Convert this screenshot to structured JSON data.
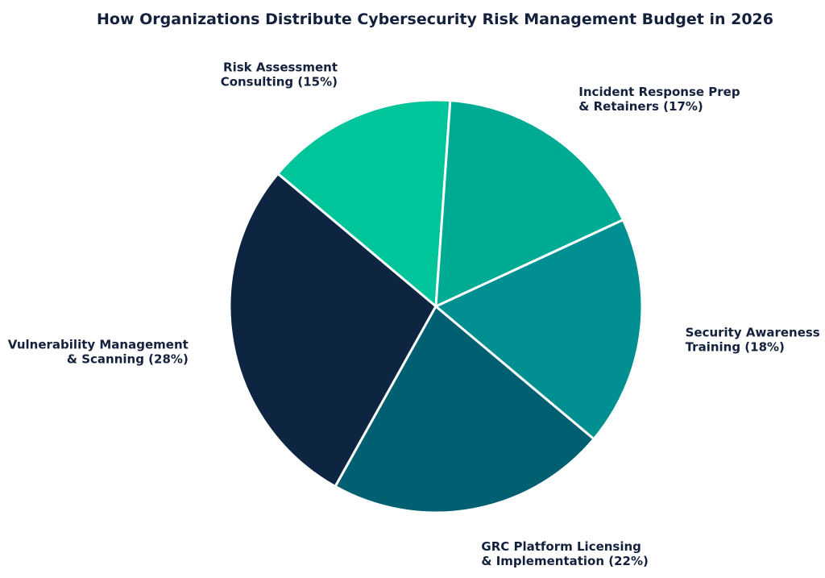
{
  "chart_data": {
    "type": "pie",
    "title": "How Organizations Distribute Cybersecurity Risk Management Budget in 2026",
    "start_angle_deg": 86,
    "direction": "counterclockwise",
    "slices": [
      {
        "label_lines": [
          "Risk Assessment",
          "Consulting (15%)"
        ],
        "value": 15,
        "color": "#00c49a"
      },
      {
        "label_lines": [
          "Vulnerability Management",
          "& Scanning (28%)"
        ],
        "value": 28,
        "color": "#0d2540"
      },
      {
        "label_lines": [
          "GRC Platform Licensing",
          "& Implementation (22%)"
        ],
        "value": 22,
        "color": "#015f72"
      },
      {
        "label_lines": [
          "Security Awareness",
          "Training (18%)"
        ],
        "value": 18,
        "color": "#028f91"
      },
      {
        "label_lines": [
          "Incident Response Prep",
          "& Retainers (17%)"
        ],
        "value": 17,
        "color": "#00ab94"
      }
    ]
  }
}
